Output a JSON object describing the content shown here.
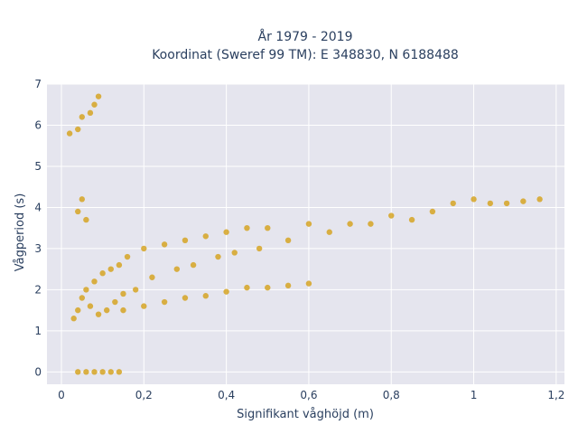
{
  "chart_data": {
    "type": "scatter",
    "title_line1": "År 1979 - 2019",
    "title_line2": "Koordinat (Sweref 99 TM): E 348830, N 6188488",
    "xlabel": "Signifikant våghöjd (m)",
    "ylabel": "Vågperiod (s)",
    "xlim": [
      -0.035,
      1.22
    ],
    "ylim": [
      -0.3,
      7.0
    ],
    "x_ticks": [
      0,
      0.2,
      0.4,
      0.6,
      0.8,
      1,
      1.2
    ],
    "x_tick_labels": [
      "0",
      "0,2",
      "0,4",
      "0,6",
      "0,8",
      "1",
      "1,2"
    ],
    "y_ticks": [
      0,
      1,
      2,
      3,
      4,
      5,
      6,
      7
    ],
    "y_tick_labels": [
      "0",
      "1",
      "2",
      "3",
      "4",
      "5",
      "6",
      "7"
    ],
    "grid": true,
    "legend": "none",
    "marker_color": "#D4A017",
    "plot_background": "#E5E5EE",
    "series": [
      {
        "values": [
          [
            0.04,
            0.0
          ],
          [
            0.06,
            0.0
          ],
          [
            0.08,
            0.0
          ],
          [
            0.1,
            0.0
          ],
          [
            0.12,
            0.0
          ],
          [
            0.14,
            0.0
          ],
          [
            0.03,
            1.3
          ],
          [
            0.04,
            1.5
          ],
          [
            0.05,
            1.8
          ],
          [
            0.06,
            2.0
          ],
          [
            0.07,
            1.6
          ],
          [
            0.08,
            2.2
          ],
          [
            0.09,
            1.4
          ],
          [
            0.1,
            2.4
          ],
          [
            0.11,
            1.5
          ],
          [
            0.12,
            2.5
          ],
          [
            0.13,
            1.7
          ],
          [
            0.14,
            2.6
          ],
          [
            0.15,
            1.9
          ],
          [
            0.16,
            2.8
          ],
          [
            0.18,
            2.0
          ],
          [
            0.2,
            3.0
          ],
          [
            0.22,
            2.3
          ],
          [
            0.25,
            3.1
          ],
          [
            0.28,
            2.5
          ],
          [
            0.3,
            3.2
          ],
          [
            0.32,
            2.6
          ],
          [
            0.35,
            3.3
          ],
          [
            0.38,
            2.8
          ],
          [
            0.4,
            3.4
          ],
          [
            0.42,
            2.9
          ],
          [
            0.45,
            3.5
          ],
          [
            0.48,
            3.0
          ],
          [
            0.5,
            3.5
          ],
          [
            0.55,
            3.2
          ],
          [
            0.6,
            3.6
          ],
          [
            0.65,
            3.4
          ],
          [
            0.7,
            3.6
          ],
          [
            0.75,
            3.6
          ],
          [
            0.8,
            3.8
          ],
          [
            0.85,
            3.7
          ],
          [
            0.9,
            3.9
          ],
          [
            0.95,
            4.1
          ],
          [
            1.0,
            4.2
          ],
          [
            1.04,
            4.1
          ],
          [
            1.08,
            4.1
          ],
          [
            1.12,
            4.15
          ],
          [
            1.16,
            4.2
          ],
          [
            0.02,
            5.8
          ],
          [
            0.04,
            5.9
          ],
          [
            0.05,
            6.2
          ],
          [
            0.07,
            6.3
          ],
          [
            0.08,
            6.5
          ],
          [
            0.09,
            6.7
          ],
          [
            0.04,
            3.9
          ],
          [
            0.05,
            4.2
          ],
          [
            0.06,
            3.7
          ],
          [
            0.15,
            1.5
          ],
          [
            0.2,
            1.6
          ],
          [
            0.25,
            1.7
          ],
          [
            0.3,
            1.8
          ],
          [
            0.35,
            1.85
          ],
          [
            0.4,
            1.95
          ],
          [
            0.45,
            2.05
          ],
          [
            0.5,
            2.05
          ],
          [
            0.55,
            2.1
          ],
          [
            0.6,
            2.15
          ]
        ]
      }
    ]
  }
}
